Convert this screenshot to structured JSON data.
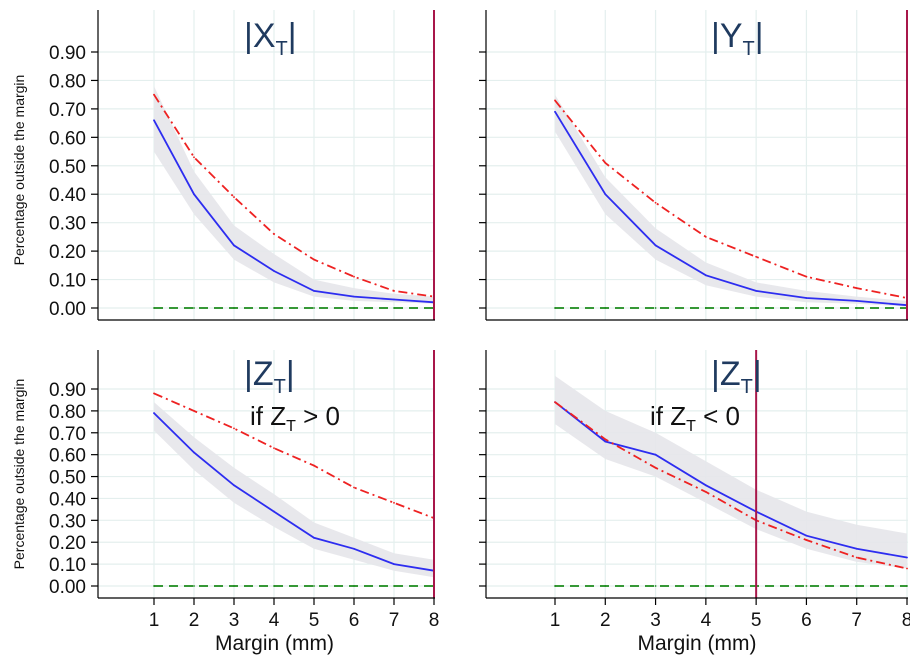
{
  "chart_data": [
    {
      "type": "line",
      "title": "|X",
      "title_sub": "T",
      "title_suffix": "|",
      "condition": "",
      "condition_sub": "",
      "condition_suffix": "",
      "xlabel": "",
      "ylabel": "Percentage outside the margin",
      "x": [
        1,
        2,
        3,
        4,
        5,
        6,
        7,
        8
      ],
      "x_ticks_shown": false,
      "yticks": [
        "0.00",
        "0.10",
        "0.20",
        "0.30",
        "0.40",
        "0.50",
        "0.60",
        "0.70",
        "0.80",
        "0.90"
      ],
      "xlim": [
        0,
        8
      ],
      "ylim": [
        -0.04,
        1.04
      ],
      "vline_x": 8,
      "grid": true,
      "series": [
        {
          "style": "solid",
          "color": "#2d2df0",
          "values": [
            0.66,
            0.4,
            0.22,
            0.13,
            0.06,
            0.04,
            0.03,
            0.02
          ]
        },
        {
          "style": "dashdot",
          "color": "#ee2222",
          "values": [
            0.75,
            0.53,
            0.39,
            0.26,
            0.17,
            0.11,
            0.06,
            0.04
          ]
        },
        {
          "style": "dashed",
          "color": "#1a8a1a",
          "values": [
            0,
            0,
            0,
            0,
            0,
            0,
            0,
            0
          ]
        }
      ],
      "band": {
        "color": "#e6e6ea",
        "lower": [
          0.55,
          0.33,
          0.17,
          0.09,
          0.04,
          0.025,
          0.02,
          0.015
        ],
        "upper": [
          0.78,
          0.48,
          0.29,
          0.19,
          0.1,
          0.07,
          0.05,
          0.04
        ]
      }
    },
    {
      "type": "line",
      "title": "|Y",
      "title_sub": "T",
      "title_suffix": "|",
      "condition": "",
      "condition_sub": "",
      "condition_suffix": "",
      "xlabel": "",
      "ylabel": "",
      "x": [
        1,
        2,
        3,
        4,
        5,
        6,
        7,
        8
      ],
      "x_ticks_shown": false,
      "yticks": [],
      "xlim": [
        0,
        8
      ],
      "ylim": [
        -0.04,
        1.04
      ],
      "vline_x": 8,
      "grid": true,
      "series": [
        {
          "style": "solid",
          "color": "#2d2df0",
          "values": [
            0.69,
            0.4,
            0.22,
            0.115,
            0.06,
            0.035,
            0.025,
            0.01
          ]
        },
        {
          "style": "dashdot",
          "color": "#ee2222",
          "values": [
            0.73,
            0.51,
            0.37,
            0.25,
            0.18,
            0.11,
            0.07,
            0.035
          ]
        },
        {
          "style": "dashed",
          "color": "#1a8a1a",
          "values": [
            0,
            0,
            0,
            0,
            0,
            0,
            0,
            0
          ]
        }
      ],
      "band": {
        "color": "#e6e6ea",
        "lower": [
          0.62,
          0.33,
          0.17,
          0.08,
          0.04,
          0.02,
          0.015,
          0.005
        ],
        "upper": [
          0.75,
          0.46,
          0.28,
          0.16,
          0.09,
          0.06,
          0.04,
          0.025
        ]
      }
    },
    {
      "type": "line",
      "title": "|Z",
      "title_sub": "T",
      "title_suffix": "|",
      "condition": "if Z",
      "condition_sub": "T",
      "condition_suffix": " > 0",
      "xlabel": "Margin (mm)",
      "ylabel": "Percentage outside the margin",
      "x": [
        1,
        2,
        3,
        4,
        5,
        6,
        7,
        8
      ],
      "x_ticks_shown": true,
      "xticks": [
        "1",
        "2",
        "3",
        "4",
        "5",
        "6",
        "7",
        "8"
      ],
      "yticks": [
        "0.00",
        "0.10",
        "0.20",
        "0.30",
        "0.40",
        "0.50",
        "0.60",
        "0.70",
        "0.80",
        "0.90"
      ],
      "xlim": [
        0,
        8
      ],
      "ylim": [
        -0.04,
        1.04
      ],
      "vline_x": 8,
      "grid": true,
      "series": [
        {
          "style": "solid",
          "color": "#2d2df0",
          "values": [
            0.79,
            0.61,
            0.46,
            0.34,
            0.22,
            0.17,
            0.1,
            0.07
          ]
        },
        {
          "style": "dashdot",
          "color": "#ee2222",
          "values": [
            0.88,
            0.8,
            0.72,
            0.63,
            0.55,
            0.45,
            0.38,
            0.31
          ]
        },
        {
          "style": "dashed",
          "color": "#1a8a1a",
          "values": [
            0,
            0,
            0,
            0,
            0,
            0,
            0,
            0
          ]
        }
      ],
      "band": {
        "color": "#e6e6ea",
        "lower": [
          0.71,
          0.53,
          0.38,
          0.27,
          0.17,
          0.12,
          0.07,
          0.04
        ],
        "upper": [
          0.84,
          0.68,
          0.54,
          0.42,
          0.29,
          0.22,
          0.15,
          0.12
        ]
      }
    },
    {
      "type": "line",
      "title": "|Z",
      "title_sub": "T",
      "title_suffix": "|",
      "condition": "if Z",
      "condition_sub": "T",
      "condition_suffix": " < 0",
      "xlabel": "Margin (mm)",
      "ylabel": "",
      "x": [
        1,
        2,
        3,
        4,
        5,
        6,
        7,
        8
      ],
      "x_ticks_shown": true,
      "xticks": [
        "1",
        "2",
        "3",
        "4",
        "5",
        "6",
        "7",
        "8"
      ],
      "yticks": [],
      "xlim": [
        0,
        8
      ],
      "ylim": [
        -0.04,
        1.04
      ],
      "vline_x": 5,
      "grid": true,
      "series": [
        {
          "style": "solid",
          "color": "#2d2df0",
          "values": [
            0.84,
            0.66,
            0.6,
            0.46,
            0.34,
            0.23,
            0.17,
            0.13
          ]
        },
        {
          "style": "dashdot",
          "color": "#ee2222",
          "values": [
            0.84,
            0.67,
            0.54,
            0.43,
            0.3,
            0.21,
            0.13,
            0.08
          ]
        },
        {
          "style": "dashed",
          "color": "#1a8a1a",
          "values": [
            0,
            0,
            0,
            0,
            0,
            0,
            0,
            0
          ]
        }
      ],
      "band": {
        "color": "#e6e6ea",
        "lower": [
          0.74,
          0.58,
          0.5,
          0.38,
          0.26,
          0.17,
          0.11,
          0.08
        ],
        "upper": [
          0.96,
          0.8,
          0.7,
          0.57,
          0.44,
          0.34,
          0.28,
          0.24
        ]
      }
    }
  ],
  "colors": {
    "vline": "#a8174a",
    "title": "#1f3a5f"
  }
}
